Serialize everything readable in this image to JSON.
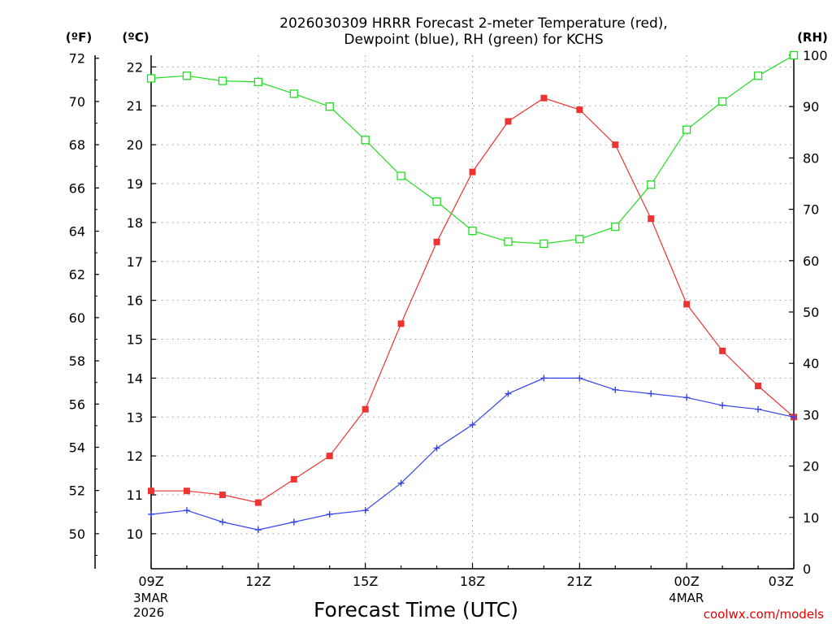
{
  "chart_data": {
    "type": "line",
    "title": [
      "2026030309 HRRR Forecast 2-meter Temperature (red),",
      "Dewpoint (blue), RH (green) for KCHS"
    ],
    "xlabel": "Forecast Time (UTC)",
    "credit": "coolwx.com/models",
    "units": {
      "fahrenheit": "(ºF)",
      "celsius": "(ºC)",
      "rh": "(RH)"
    },
    "x_hours": [
      9,
      10,
      11,
      12,
      13,
      14,
      15,
      16,
      17,
      18,
      19,
      20,
      21,
      22,
      23,
      24,
      25,
      26,
      27
    ],
    "x_ticks": [
      {
        "hour": 9,
        "label": "09Z",
        "date": [
          "3MAR",
          "2026"
        ]
      },
      {
        "hour": 12,
        "label": "12Z"
      },
      {
        "hour": 15,
        "label": "15Z"
      },
      {
        "hour": 18,
        "label": "18Z"
      },
      {
        "hour": 21,
        "label": "21Z"
      },
      {
        "hour": 24,
        "label": "00Z",
        "date": [
          "4MAR"
        ]
      },
      {
        "hour": 27,
        "label": "03Z"
      }
    ],
    "celsius_axis": {
      "range": [
        9.1,
        22.3
      ],
      "ticks": [
        10,
        11,
        12,
        13,
        14,
        15,
        16,
        17,
        18,
        19,
        20,
        21,
        22
      ]
    },
    "fahrenheit_axis": {
      "ticks": [
        50,
        52,
        54,
        56,
        58,
        60,
        62,
        64,
        66,
        68,
        70,
        72
      ]
    },
    "rh_axis": {
      "range": [
        0,
        100
      ],
      "ticks": [
        0,
        10,
        20,
        30,
        40,
        50,
        60,
        70,
        80,
        90,
        100
      ]
    },
    "grid": true,
    "series": [
      {
        "name": "Temperature",
        "unit": "C",
        "color": "#ee3333",
        "marker": "filled-square",
        "values": [
          11.1,
          11.1,
          11.0,
          10.8,
          11.4,
          12.0,
          13.2,
          15.4,
          17.5,
          19.3,
          20.6,
          21.2,
          20.9,
          20.0,
          18.1,
          15.9,
          14.7,
          13.8,
          13.0
        ]
      },
      {
        "name": "Dewpoint",
        "unit": "C",
        "color": "#3344ee",
        "marker": "plus",
        "values": [
          10.5,
          10.6,
          10.3,
          10.1,
          10.3,
          10.5,
          10.6,
          11.3,
          12.2,
          12.8,
          13.6,
          14.0,
          14.0,
          13.7,
          13.6,
          13.5,
          13.3,
          13.2,
          13.0
        ]
      },
      {
        "name": "RH",
        "unit": "%",
        "color": "#22dd22",
        "marker": "open-square",
        "values": [
          95.5,
          96.0,
          95.0,
          94.8,
          92.5,
          90.0,
          83.5,
          76.5,
          71.5,
          65.8,
          63.7,
          63.3,
          64.2,
          66.6,
          74.8,
          85.5,
          91.0,
          96.0,
          100.0
        ]
      }
    ]
  }
}
